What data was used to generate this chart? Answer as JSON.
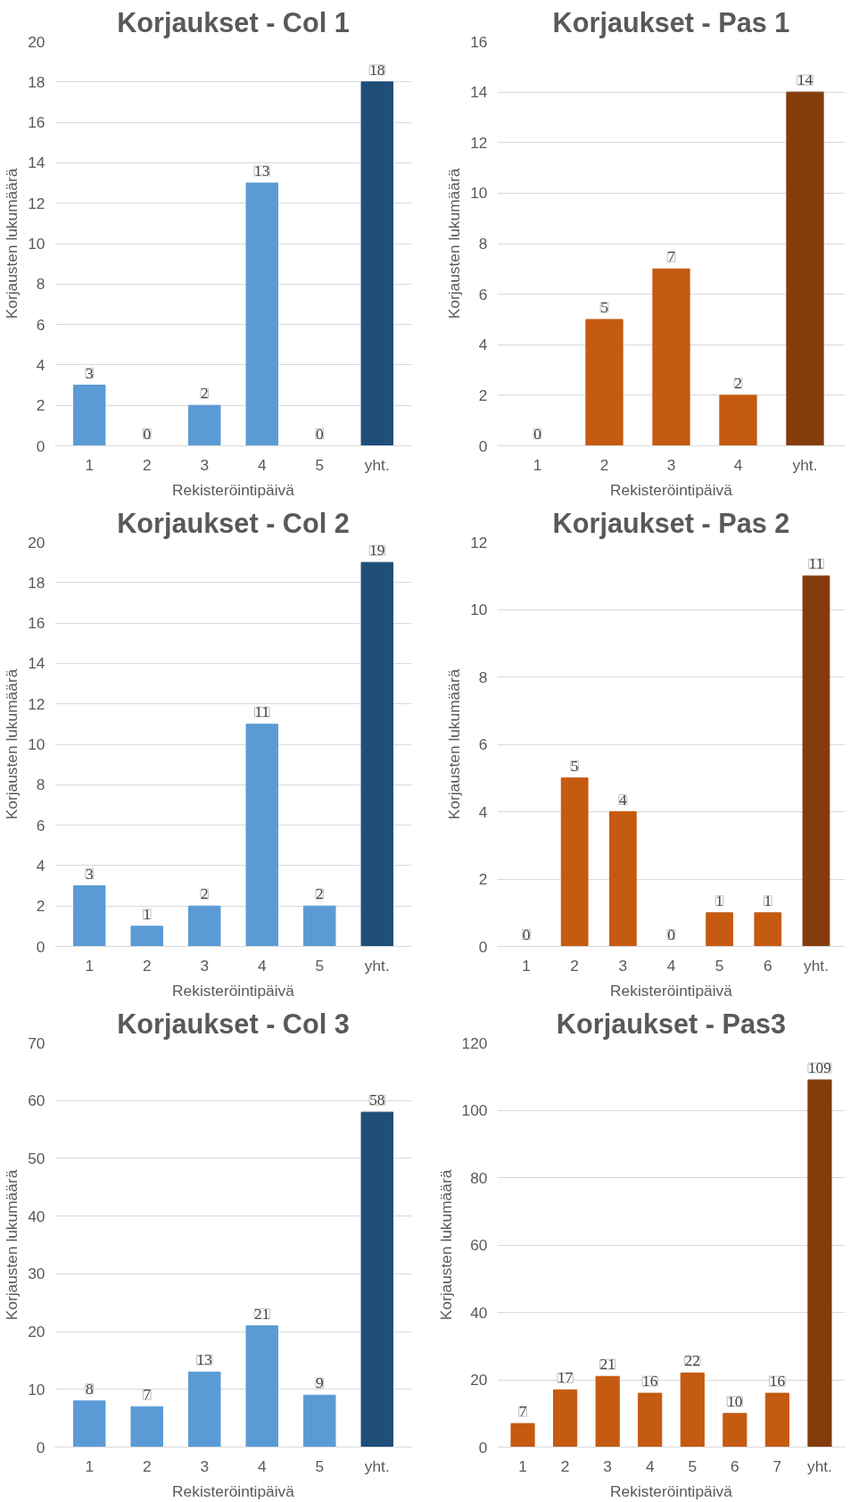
{
  "chart_data": [
    {
      "type": "bar",
      "title": "Korjaukset - Col 1",
      "xlabel": "Rekisteröintipäivä",
      "ylabel": "Korjausten lukumäärä",
      "categories": [
        "1",
        "2",
        "3",
        "4",
        "5",
        "yht."
      ],
      "values": [
        3,
        0,
        2,
        13,
        0,
        18
      ],
      "colors": [
        "#5b9bd5",
        "#5b9bd5",
        "#5b9bd5",
        "#5b9bd5",
        "#5b9bd5",
        "#1f4e79"
      ],
      "ylim": [
        0,
        20
      ],
      "yticks": [
        0,
        2,
        4,
        6,
        8,
        10,
        12,
        14,
        16,
        18,
        20
      ],
      "grid": "y",
      "data_labels": true
    },
    {
      "type": "bar",
      "title": "Korjaukset - Pas 1",
      "xlabel": "Rekisteröintipäivä",
      "ylabel": "Korjausten lukumäärä",
      "categories": [
        "1",
        "2",
        "3",
        "4",
        "yht."
      ],
      "values": [
        0,
        5,
        7,
        2,
        14
      ],
      "colors": [
        "#c55a11",
        "#c55a11",
        "#c55a11",
        "#c55a11",
        "#843c0c"
      ],
      "ylim": [
        0,
        16
      ],
      "yticks": [
        0,
        2,
        4,
        6,
        8,
        10,
        12,
        14,
        16
      ],
      "grid": "y",
      "data_labels": true
    },
    {
      "type": "bar",
      "title": "Korjaukset - Col 2",
      "xlabel": "Rekisteröintipäivä",
      "ylabel": "Korjausten lukumäärä",
      "categories": [
        "1",
        "2",
        "3",
        "4",
        "5",
        "yht."
      ],
      "values": [
        3,
        1,
        2,
        11,
        2,
        19
      ],
      "colors": [
        "#5b9bd5",
        "#5b9bd5",
        "#5b9bd5",
        "#5b9bd5",
        "#5b9bd5",
        "#1f4e79"
      ],
      "ylim": [
        0,
        20
      ],
      "yticks": [
        0,
        2,
        4,
        6,
        8,
        10,
        12,
        14,
        16,
        18,
        20
      ],
      "grid": "y",
      "data_labels": true
    },
    {
      "type": "bar",
      "title": "Korjaukset - Pas 2",
      "xlabel": "Rekisteröintipäivä",
      "ylabel": "Korjausten lukumäärä",
      "categories": [
        "1",
        "2",
        "3",
        "4",
        "5",
        "6",
        "yht."
      ],
      "values": [
        0,
        5,
        4,
        0,
        1,
        1,
        11
      ],
      "colors": [
        "#c55a11",
        "#c55a11",
        "#c55a11",
        "#c55a11",
        "#c55a11",
        "#c55a11",
        "#843c0c"
      ],
      "ylim": [
        0,
        12
      ],
      "yticks": [
        0,
        2,
        4,
        6,
        8,
        10,
        12
      ],
      "grid": "y",
      "data_labels": true
    },
    {
      "type": "bar",
      "title": "Korjaukset - Col 3",
      "xlabel": "Rekisteröintipäivä",
      "ylabel": "Korjausten lukumäärä",
      "categories": [
        "1",
        "2",
        "3",
        "4",
        "5",
        "yht."
      ],
      "values": [
        8,
        7,
        13,
        21,
        9,
        58
      ],
      "colors": [
        "#5b9bd5",
        "#5b9bd5",
        "#5b9bd5",
        "#5b9bd5",
        "#5b9bd5",
        "#1f4e79"
      ],
      "ylim": [
        0,
        70
      ],
      "yticks": [
        0,
        10,
        20,
        30,
        40,
        50,
        60,
        70
      ],
      "grid": "y",
      "data_labels": true
    },
    {
      "type": "bar",
      "title": "Korjaukset - Pas3",
      "xlabel": "Rekisteröintipäivä",
      "ylabel": "Korjausten lukumäärä",
      "categories": [
        "1",
        "2",
        "3",
        "4",
        "5",
        "6",
        "7",
        "yht."
      ],
      "values": [
        7,
        17,
        21,
        16,
        22,
        10,
        16,
        109
      ],
      "colors": [
        "#c55a11",
        "#c55a11",
        "#c55a11",
        "#c55a11",
        "#c55a11",
        "#c55a11",
        "#c55a11",
        "#843c0c"
      ],
      "ylim": [
        0,
        120
      ],
      "yticks": [
        0,
        20,
        40,
        60,
        80,
        100,
        120
      ],
      "grid": "y",
      "data_labels": true
    }
  ]
}
